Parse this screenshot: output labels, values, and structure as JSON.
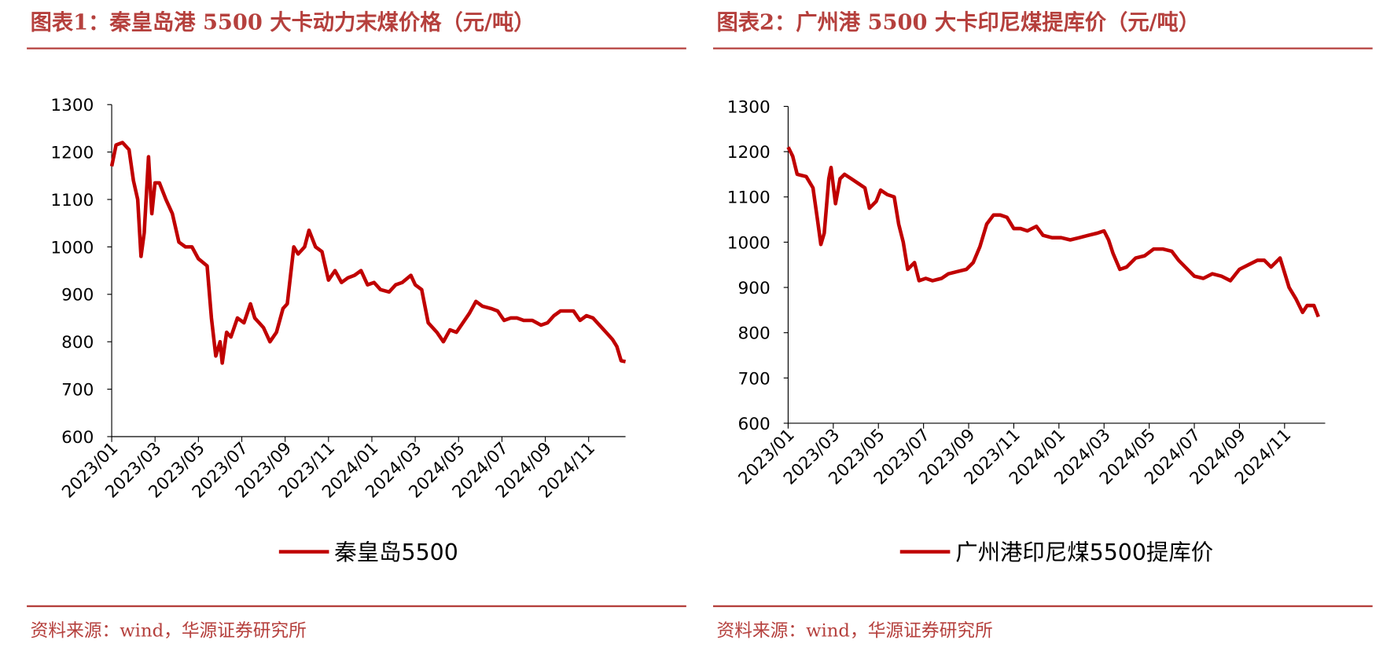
{
  "chart_data": [
    {
      "type": "line",
      "title": "图表1：秦皇岛港 5500 大卡动力末煤价格（元/吨）",
      "source": "资料来源：wind，华源证券研究所",
      "xlim": [
        0,
        23.7
      ],
      "ylim": [
        600,
        1300
      ],
      "yticks": [
        600,
        700,
        800,
        900,
        1000,
        1100,
        1200,
        1300
      ],
      "xticks": [
        {
          "value": 0,
          "label": "2023/01"
        },
        {
          "value": 2,
          "label": "2023/03"
        },
        {
          "value": 4,
          "label": "2023/05"
        },
        {
          "value": 6,
          "label": "2023/07"
        },
        {
          "value": 8,
          "label": "2023/09"
        },
        {
          "value": 10,
          "label": "2023/11"
        },
        {
          "value": 12,
          "label": "2024/01"
        },
        {
          "value": 14,
          "label": "2024/03"
        },
        {
          "value": 16,
          "label": "2024/05"
        },
        {
          "value": 18,
          "label": "2024/07"
        },
        {
          "value": 20,
          "label": "2024/09"
        },
        {
          "value": 22,
          "label": "2024/11"
        }
      ],
      "x": [
        0,
        0.2,
        0.5,
        0.8,
        1.0,
        1.2,
        1.35,
        1.5,
        1.7,
        1.85,
        2.0,
        2.2,
        2.5,
        2.8,
        3.1,
        3.4,
        3.7,
        4.0,
        4.4,
        4.6,
        4.8,
        5.0,
        5.1,
        5.3,
        5.5,
        5.8,
        6.1,
        6.4,
        6.6,
        7.0,
        7.3,
        7.6,
        7.9,
        8.1,
        8.4,
        8.6,
        8.9,
        9.1,
        9.4,
        9.7,
        10.0,
        10.3,
        10.6,
        10.9,
        11.2,
        11.5,
        11.8,
        12.1,
        12.4,
        12.8,
        13.1,
        13.4,
        13.8,
        14.0,
        14.3,
        14.6,
        15.0,
        15.3,
        15.6,
        15.9,
        16.2,
        16.5,
        16.8,
        17.1,
        17.5,
        17.8,
        18.1,
        18.4,
        18.7,
        19.0,
        19.4,
        19.8,
        20.1,
        20.4,
        20.7,
        21.0,
        21.3,
        21.6,
        21.9,
        22.2,
        22.5,
        22.8,
        23.1,
        23.3,
        23.5,
        23.7
      ],
      "series": [
        {
          "name": "秦皇岛5500",
          "color": "#c00000",
          "values": [
            1170,
            1215,
            1220,
            1205,
            1140,
            1100,
            980,
            1030,
            1190,
            1070,
            1135,
            1135,
            1100,
            1070,
            1010,
            1000,
            1000,
            975,
            960,
            850,
            770,
            800,
            755,
            820,
            810,
            850,
            840,
            880,
            850,
            830,
            800,
            820,
            870,
            880,
            1000,
            985,
            1000,
            1035,
            1000,
            990,
            930,
            950,
            925,
            935,
            940,
            950,
            920,
            925,
            910,
            905,
            920,
            925,
            940,
            920,
            910,
            840,
            820,
            800,
            825,
            820,
            840,
            860,
            885,
            875,
            870,
            865,
            845,
            850,
            850,
            845,
            845,
            835,
            840,
            855,
            865,
            865,
            865,
            845,
            855,
            850,
            835,
            820,
            805,
            790,
            760,
            758
          ]
        }
      ]
    },
    {
      "type": "line",
      "title": "图表2：广州港 5500 大卡印尼煤提库价（元/吨）",
      "source": "资料来源：wind，华源证券研究所",
      "xlim": [
        0,
        23.8
      ],
      "ylim": [
        600,
        1300
      ],
      "yticks": [
        600,
        700,
        800,
        900,
        1000,
        1100,
        1200,
        1300
      ],
      "xticks": [
        {
          "value": 0,
          "label": "2023/01"
        },
        {
          "value": 2,
          "label": "2023/03"
        },
        {
          "value": 4,
          "label": "2023/05"
        },
        {
          "value": 6,
          "label": "2023/07"
        },
        {
          "value": 8,
          "label": "2023/09"
        },
        {
          "value": 10,
          "label": "2023/11"
        },
        {
          "value": 12,
          "label": "2024/01"
        },
        {
          "value": 14,
          "label": "2024/03"
        },
        {
          "value": 16,
          "label": "2024/05"
        },
        {
          "value": 18,
          "label": "2024/07"
        },
        {
          "value": 20,
          "label": "2024/09"
        },
        {
          "value": 22,
          "label": "2024/11"
        }
      ],
      "x": [
        0,
        0.2,
        0.4,
        0.8,
        1.1,
        1.3,
        1.45,
        1.6,
        1.8,
        1.9,
        2.1,
        2.3,
        2.5,
        2.8,
        3.1,
        3.4,
        3.6,
        3.9,
        4.1,
        4.4,
        4.7,
        4.9,
        5.1,
        5.3,
        5.6,
        5.8,
        6.1,
        6.4,
        6.8,
        7.1,
        7.5,
        7.9,
        8.2,
        8.5,
        8.8,
        9.1,
        9.4,
        9.7,
        10.0,
        10.3,
        10.6,
        11.0,
        11.3,
        11.7,
        12.1,
        12.5,
        12.9,
        13.3,
        13.7,
        14.0,
        14.2,
        14.4,
        14.7,
        15.0,
        15.4,
        15.8,
        16.2,
        16.6,
        17.0,
        17.3,
        17.6,
        18.0,
        18.4,
        18.8,
        19.2,
        19.6,
        20.0,
        20.4,
        20.8,
        21.1,
        21.4,
        21.8,
        22.2,
        22.5,
        22.8,
        23.0,
        23.3,
        23.5
      ],
      "series": [
        {
          "name": "广州港印尼煤5500提库价",
          "color": "#c00000",
          "values": [
            1210,
            1190,
            1150,
            1145,
            1120,
            1050,
            995,
            1020,
            1140,
            1165,
            1085,
            1140,
            1150,
            1140,
            1130,
            1120,
            1075,
            1090,
            1115,
            1105,
            1100,
            1040,
            1000,
            940,
            955,
            915,
            920,
            915,
            920,
            930,
            935,
            940,
            955,
            990,
            1040,
            1060,
            1060,
            1055,
            1030,
            1030,
            1025,
            1035,
            1015,
            1010,
            1010,
            1005,
            1010,
            1015,
            1020,
            1025,
            1005,
            975,
            940,
            945,
            965,
            970,
            985,
            985,
            980,
            960,
            945,
            925,
            920,
            930,
            925,
            915,
            940,
            950,
            960,
            960,
            945,
            965,
            900,
            875,
            845,
            860,
            860,
            835
          ]
        }
      ]
    }
  ]
}
